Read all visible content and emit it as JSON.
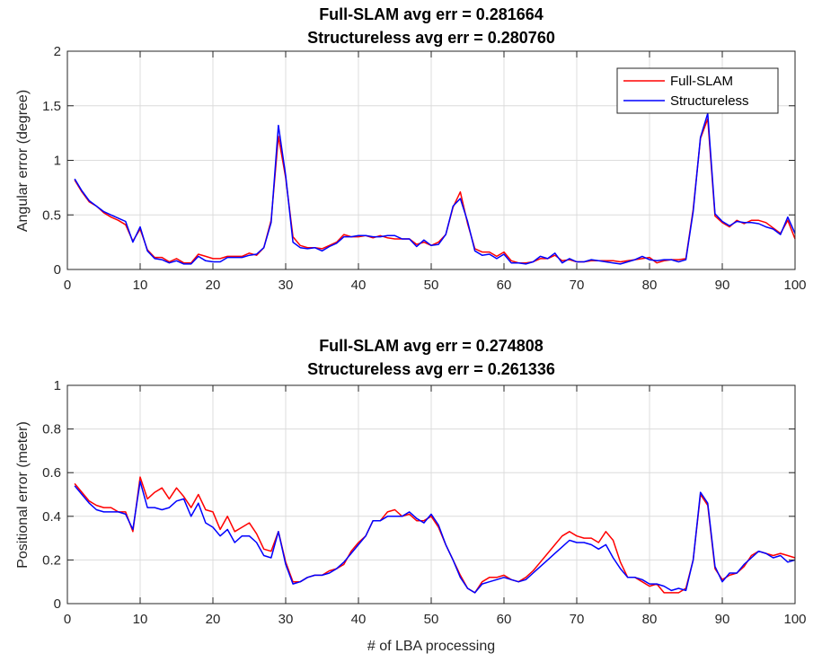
{
  "chart_data": [
    {
      "type": "line",
      "title": [
        "Full-SLAM avg err = 0.281664",
        "Structureless avg err = 0.280760"
      ],
      "xlabel": "",
      "ylabel": "Angular error (degree)",
      "xlim": [
        0,
        100
      ],
      "ylim": [
        0,
        2
      ],
      "xticks": [
        0,
        10,
        20,
        30,
        40,
        50,
        60,
        70,
        80,
        90,
        100
      ],
      "yticks": [
        0,
        0.5,
        1,
        1.5,
        2
      ],
      "ytick_labels": [
        "0",
        "0.5",
        "1",
        "1.5",
        "2"
      ],
      "grid": true,
      "legend": "top-right",
      "x": [
        1,
        2,
        3,
        4,
        5,
        6,
        7,
        8,
        9,
        10,
        11,
        12,
        13,
        14,
        15,
        16,
        17,
        18,
        19,
        20,
        21,
        22,
        23,
        24,
        25,
        26,
        27,
        28,
        29,
        30,
        31,
        32,
        33,
        34,
        35,
        36,
        37,
        38,
        39,
        40,
        41,
        42,
        43,
        44,
        45,
        46,
        47,
        48,
        49,
        50,
        51,
        52,
        53,
        54,
        55,
        56,
        57,
        58,
        59,
        60,
        61,
        62,
        63,
        64,
        65,
        66,
        67,
        68,
        69,
        70,
        71,
        72,
        73,
        74,
        75,
        76,
        77,
        78,
        79,
        80,
        81,
        82,
        83,
        84,
        85,
        86,
        87,
        88,
        89,
        90,
        91,
        92,
        93,
        94,
        95,
        96,
        97,
        98,
        99,
        100
      ],
      "series": [
        {
          "name": "Full-SLAM",
          "color": "#ff0000",
          "values": [
            0.82,
            0.71,
            0.62,
            0.58,
            0.52,
            0.48,
            0.45,
            0.41,
            0.26,
            0.37,
            0.18,
            0.11,
            0.11,
            0.07,
            0.1,
            0.06,
            0.06,
            0.14,
            0.12,
            0.1,
            0.1,
            0.12,
            0.12,
            0.12,
            0.15,
            0.13,
            0.2,
            0.45,
            1.22,
            0.84,
            0.3,
            0.22,
            0.2,
            0.2,
            0.19,
            0.22,
            0.25,
            0.32,
            0.3,
            0.3,
            0.31,
            0.29,
            0.31,
            0.29,
            0.28,
            0.28,
            0.28,
            0.23,
            0.25,
            0.22,
            0.25,
            0.32,
            0.57,
            0.71,
            0.42,
            0.19,
            0.16,
            0.16,
            0.12,
            0.16,
            0.08,
            0.06,
            0.06,
            0.07,
            0.1,
            0.1,
            0.13,
            0.08,
            0.09,
            0.07,
            0.07,
            0.08,
            0.08,
            0.08,
            0.08,
            0.07,
            0.08,
            0.09,
            0.1,
            0.11,
            0.06,
            0.08,
            0.09,
            0.09,
            0.1,
            0.55,
            1.2,
            1.38,
            0.49,
            0.43,
            0.39,
            0.45,
            0.42,
            0.45,
            0.45,
            0.43,
            0.38,
            0.33,
            0.45,
            0.28
          ]
        },
        {
          "name": "Structureless",
          "color": "#0000ff",
          "values": [
            0.83,
            0.72,
            0.63,
            0.58,
            0.53,
            0.5,
            0.47,
            0.44,
            0.25,
            0.39,
            0.17,
            0.1,
            0.09,
            0.06,
            0.08,
            0.05,
            0.05,
            0.12,
            0.08,
            0.07,
            0.07,
            0.11,
            0.11,
            0.11,
            0.13,
            0.14,
            0.2,
            0.43,
            1.32,
            0.86,
            0.25,
            0.2,
            0.19,
            0.2,
            0.17,
            0.21,
            0.24,
            0.3,
            0.3,
            0.31,
            0.31,
            0.3,
            0.3,
            0.31,
            0.31,
            0.28,
            0.28,
            0.21,
            0.27,
            0.22,
            0.23,
            0.32,
            0.58,
            0.65,
            0.44,
            0.17,
            0.13,
            0.14,
            0.1,
            0.14,
            0.06,
            0.06,
            0.05,
            0.07,
            0.12,
            0.1,
            0.15,
            0.06,
            0.1,
            0.07,
            0.07,
            0.09,
            0.08,
            0.07,
            0.06,
            0.05,
            0.07,
            0.09,
            0.12,
            0.09,
            0.08,
            0.09,
            0.09,
            0.07,
            0.09,
            0.53,
            1.21,
            1.43,
            0.51,
            0.44,
            0.4,
            0.44,
            0.43,
            0.43,
            0.42,
            0.39,
            0.37,
            0.32,
            0.48,
            0.33
          ]
        }
      ]
    },
    {
      "type": "line",
      "title": [
        "Full-SLAM avg err = 0.274808",
        "Structureless avg err = 0.261336"
      ],
      "xlabel": "# of LBA processing",
      "ylabel": "Positional error (meter)",
      "xlim": [
        0,
        100
      ],
      "ylim": [
        0,
        1
      ],
      "xticks": [
        0,
        10,
        20,
        30,
        40,
        50,
        60,
        70,
        80,
        90,
        100
      ],
      "yticks": [
        0,
        0.2,
        0.4,
        0.6,
        0.8,
        1
      ],
      "ytick_labels": [
        "0",
        "0.2",
        "0.4",
        "0.6",
        "0.8",
        "1"
      ],
      "grid": true,
      "x": [
        1,
        2,
        3,
        4,
        5,
        6,
        7,
        8,
        9,
        10,
        11,
        12,
        13,
        14,
        15,
        16,
        17,
        18,
        19,
        20,
        21,
        22,
        23,
        24,
        25,
        26,
        27,
        28,
        29,
        30,
        31,
        32,
        33,
        34,
        35,
        36,
        37,
        38,
        39,
        40,
        41,
        42,
        43,
        44,
        45,
        46,
        47,
        48,
        49,
        50,
        51,
        52,
        53,
        54,
        55,
        56,
        57,
        58,
        59,
        60,
        61,
        62,
        63,
        64,
        65,
        66,
        67,
        68,
        69,
        70,
        71,
        72,
        73,
        74,
        75,
        76,
        77,
        78,
        79,
        80,
        81,
        82,
        83,
        84,
        85,
        86,
        87,
        88,
        89,
        90,
        91,
        92,
        93,
        94,
        95,
        96,
        97,
        98,
        99,
        100
      ],
      "series": [
        {
          "name": "Full-SLAM",
          "color": "#ff0000",
          "values": [
            0.55,
            0.51,
            0.47,
            0.45,
            0.44,
            0.44,
            0.42,
            0.42,
            0.33,
            0.58,
            0.48,
            0.51,
            0.53,
            0.48,
            0.53,
            0.49,
            0.44,
            0.5,
            0.43,
            0.42,
            0.34,
            0.4,
            0.33,
            0.35,
            0.37,
            0.32,
            0.25,
            0.24,
            0.33,
            0.19,
            0.1,
            0.1,
            0.12,
            0.13,
            0.13,
            0.15,
            0.16,
            0.18,
            0.24,
            0.28,
            0.31,
            0.38,
            0.38,
            0.42,
            0.43,
            0.4,
            0.41,
            0.38,
            0.38,
            0.4,
            0.35,
            0.27,
            0.2,
            0.13,
            0.07,
            0.05,
            0.1,
            0.12,
            0.12,
            0.13,
            0.11,
            0.1,
            0.12,
            0.15,
            0.19,
            0.23,
            0.27,
            0.31,
            0.33,
            0.31,
            0.3,
            0.3,
            0.28,
            0.33,
            0.29,
            0.19,
            0.12,
            0.12,
            0.1,
            0.08,
            0.09,
            0.05,
            0.05,
            0.05,
            0.07,
            0.2,
            0.5,
            0.45,
            0.16,
            0.11,
            0.13,
            0.14,
            0.17,
            0.22,
            0.24,
            0.23,
            0.22,
            0.23,
            0.22,
            0.21
          ]
        },
        {
          "name": "Structureless",
          "color": "#0000ff",
          "values": [
            0.54,
            0.5,
            0.46,
            0.43,
            0.42,
            0.42,
            0.42,
            0.41,
            0.34,
            0.56,
            0.44,
            0.44,
            0.43,
            0.44,
            0.47,
            0.48,
            0.4,
            0.46,
            0.37,
            0.35,
            0.31,
            0.34,
            0.28,
            0.31,
            0.31,
            0.28,
            0.22,
            0.21,
            0.33,
            0.18,
            0.09,
            0.1,
            0.12,
            0.13,
            0.13,
            0.14,
            0.16,
            0.19,
            0.23,
            0.27,
            0.31,
            0.38,
            0.38,
            0.4,
            0.4,
            0.4,
            0.42,
            0.39,
            0.37,
            0.41,
            0.36,
            0.27,
            0.2,
            0.12,
            0.07,
            0.05,
            0.09,
            0.1,
            0.11,
            0.12,
            0.11,
            0.1,
            0.11,
            0.14,
            0.17,
            0.2,
            0.23,
            0.26,
            0.29,
            0.28,
            0.28,
            0.27,
            0.25,
            0.27,
            0.21,
            0.16,
            0.12,
            0.12,
            0.11,
            0.09,
            0.09,
            0.08,
            0.06,
            0.07,
            0.06,
            0.2,
            0.51,
            0.46,
            0.17,
            0.1,
            0.14,
            0.14,
            0.18,
            0.21,
            0.24,
            0.23,
            0.21,
            0.22,
            0.19,
            0.2
          ]
        }
      ]
    }
  ]
}
